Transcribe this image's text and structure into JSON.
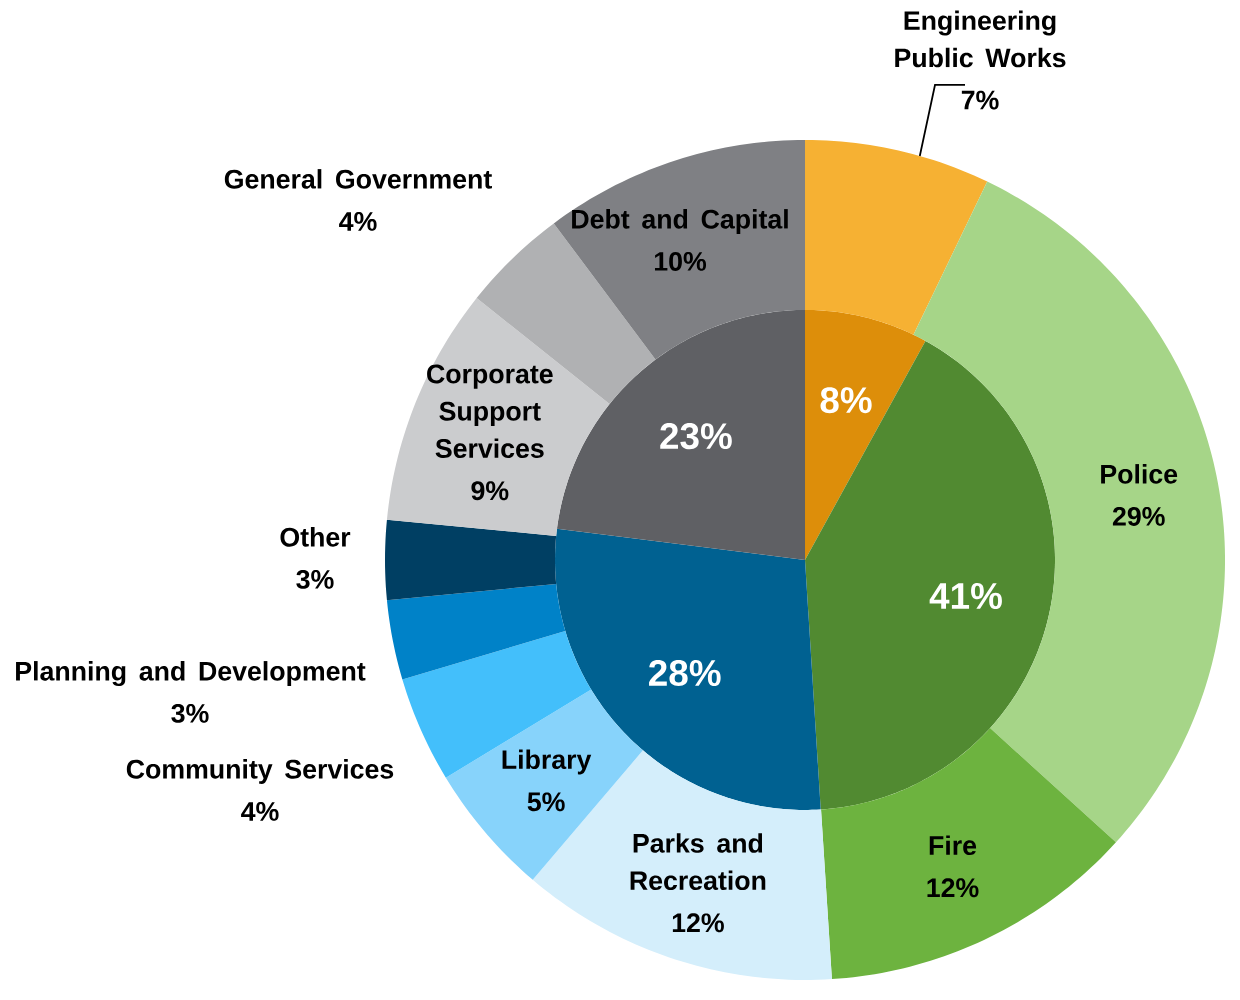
{
  "chart_data": [
    {
      "type": "pie",
      "categories": [
        null,
        null,
        null,
        null
      ],
      "values": [
        8,
        41,
        28,
        23
      ],
      "value_labels": [
        "8%",
        "41%",
        "28%",
        "23%"
      ],
      "colors": [
        "#dd8e0a",
        "#518a31",
        "#006191",
        "#5f6064"
      ]
    },
    {
      "type": "donut",
      "categories": [
        "Engineering Public Works",
        "Police",
        "Fire",
        "Parks and Recreation",
        "Library",
        "Community Services",
        "Planning and Development",
        "Other",
        "Corporate Support Services",
        "General Government",
        "Debt and Capital"
      ],
      "values": [
        7,
        29,
        12,
        12,
        5,
        4,
        3,
        3,
        9,
        4,
        10
      ],
      "value_labels": [
        "7%",
        "29%",
        "12%",
        "12%",
        "5%",
        "4%",
        "3%",
        "3%",
        "9%",
        "4%",
        "10%"
      ],
      "colors": [
        "#f6b133",
        "#a6d588",
        "#6db33f",
        "#d4eefb",
        "#87d3fb",
        "#43bffb",
        "#0082c8",
        "#003f63",
        "#cbccce",
        "#b0b1b3",
        "#7f8084"
      ]
    }
  ]
}
